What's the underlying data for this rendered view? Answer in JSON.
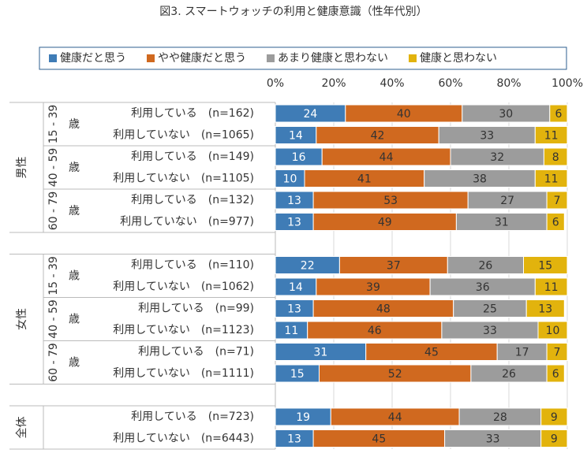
{
  "chart_data": {
    "type": "bar",
    "orientation": "horizontal",
    "stacked": true,
    "title": "図3. スマートウォッチの利用と健康意識（性年代別）",
    "legend": "top",
    "grid": true,
    "xlim": [
      0,
      100
    ],
    "xticks": [
      {
        "value": 0,
        "label": "0%"
      },
      {
        "value": 20,
        "label": "20%"
      },
      {
        "value": 40,
        "label": "40%"
      },
      {
        "value": 60,
        "label": "60%"
      },
      {
        "value": 80,
        "label": "80%"
      },
      {
        "value": 100,
        "label": "100%"
      }
    ],
    "groups": [
      {
        "name": "男性",
        "subgroups": [
          {
            "name": "15 - 39",
            "unit": "歳",
            "categories": [
              "利用している　(n=162)",
              "利用していない　(n=1065)"
            ]
          },
          {
            "name": "40 - 59",
            "unit": "歳",
            "categories": [
              "利用している　(n=149)",
              "利用していない　(n=1105)"
            ]
          },
          {
            "name": "60 - 79",
            "unit": "歳",
            "categories": [
              "利用している　(n=132)",
              "利用していない　(n=977)"
            ]
          }
        ]
      },
      {
        "name": "女性",
        "subgroups": [
          {
            "name": "15 - 39",
            "unit": "歳",
            "categories": [
              "利用している　(n=110)",
              "利用していない　(n=1062)"
            ]
          },
          {
            "name": "40 - 59",
            "unit": "歳",
            "categories": [
              "利用している　(n=99)",
              "利用していない　(n=1123)"
            ]
          },
          {
            "name": "60 - 79",
            "unit": "歳",
            "categories": [
              "利用している　(n=71)",
              "利用していない　(n=1111)"
            ]
          }
        ]
      },
      {
        "name": "全体",
        "subgroups": [
          {
            "categories": [
              "利用している　(n=723)",
              "利用していない　(n=6443)"
            ]
          }
        ]
      }
    ],
    "series": [
      {
        "name": "健康だと思う",
        "color": "#3f7cb6",
        "values": [
          24,
          14,
          16,
          10,
          13,
          13,
          22,
          14,
          13,
          11,
          31,
          15,
          19,
          13
        ]
      },
      {
        "name": "やや健康だと思う",
        "color": "#d0691f",
        "values": [
          40,
          42,
          44,
          41,
          53,
          49,
          37,
          39,
          48,
          46,
          45,
          52,
          44,
          45
        ]
      },
      {
        "name": "あまり健康と思わない",
        "color": "#9c9c9c",
        "values": [
          30,
          33,
          32,
          38,
          27,
          31,
          26,
          36,
          25,
          33,
          17,
          26,
          28,
          33
        ]
      },
      {
        "name": "健康と思わない",
        "color": "#e2b30d",
        "values": [
          6,
          11,
          8,
          11,
          7,
          6,
          15,
          11,
          13,
          10,
          7,
          6,
          9,
          9
        ]
      }
    ]
  }
}
